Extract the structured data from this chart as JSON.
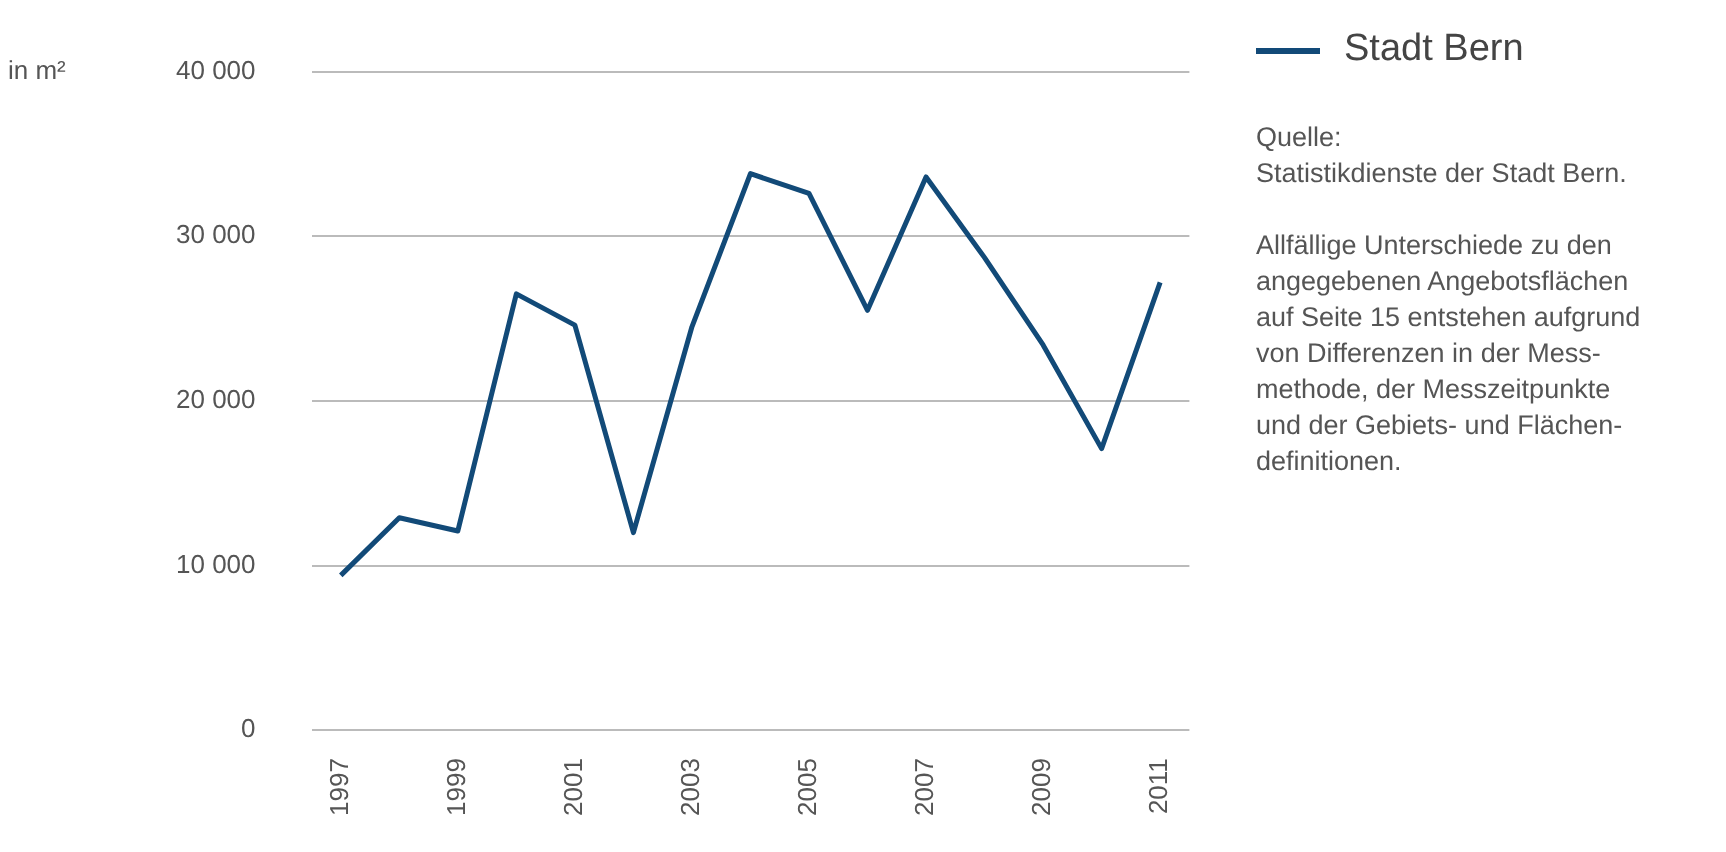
{
  "chart_data": {
    "type": "line",
    "ylabel": "in m²",
    "categories": [
      "1997",
      null,
      "1999",
      null,
      "2001",
      null,
      "2003",
      null,
      "2005",
      null,
      "2007",
      null,
      "2009",
      null,
      "2011"
    ],
    "series": [
      {
        "name": "Stadt Bern",
        "color": "#124a78",
        "values": [
          9400,
          12900,
          12100,
          26500,
          24600,
          12000,
          24500,
          33800,
          32600,
          25500,
          33600,
          28700,
          23400,
          17100,
          27200
        ]
      }
    ],
    "ylim": [
      0,
      40000
    ],
    "yticks": [
      {
        "value": 0,
        "label": "0"
      },
      {
        "value": 10000,
        "label": "10 000"
      },
      {
        "value": 20000,
        "label": "20 000"
      },
      {
        "value": 30000,
        "label": "30 000"
      },
      {
        "value": 40000,
        "label": "40 000"
      }
    ],
    "grid": "y",
    "legend": "top right",
    "marker": "none",
    "line_style": "solid",
    "annotations": [
      "Quelle:\nStatistikdienste der Stadt Bern.",
      "Allfällige Unterschiede zu den\nangegebenen Angebotsflächen\nauf Seite 15 entstehen aufgrund\nvon Differenzen in der Mess-\nmethode, der Messzeitpunkte\nund der Gebiets- und Flächen-\ndefinitionen."
    ]
  }
}
